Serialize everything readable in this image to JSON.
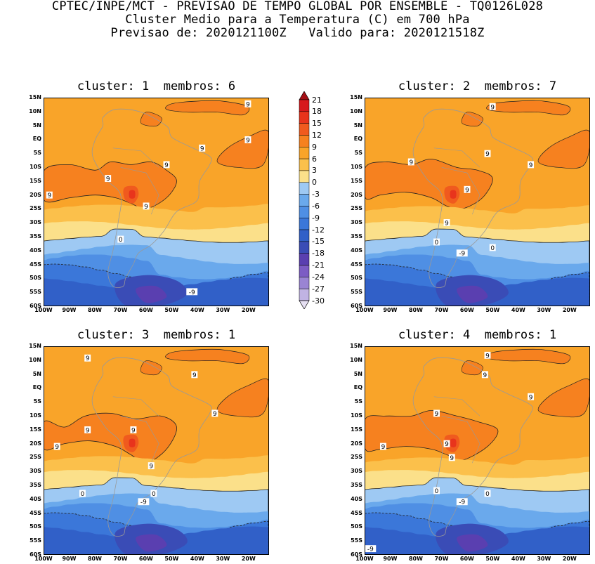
{
  "title": {
    "line1": "CPTEC/INPE/MCT - PREVISAO DE TEMPO GLOBAL POR ENSEMBLE - TQ0126L028",
    "line2": "Cluster Medio para a Temperatura (C) em 700 hPa",
    "line3": "Previsao de: 2020121100Z   Valido para: 2020121518Z"
  },
  "lat_labels": [
    "15N",
    "10N",
    "5N",
    "EQ",
    "5S",
    "10S",
    "15S",
    "20S",
    "25S",
    "30S",
    "35S",
    "40S",
    "45S",
    "50S",
    "55S",
    "60S"
  ],
  "lon_labels": [
    "100W",
    "90W",
    "80W",
    "70W",
    "60W",
    "50W",
    "40W",
    "30W",
    "20W"
  ],
  "colorbar": {
    "labels": [
      "21",
      "18",
      "15",
      "12",
      "9",
      "6",
      "3",
      "0",
      "-3",
      "-6",
      "-9",
      "-12",
      "-15",
      "-18",
      "-21",
      "-24",
      "-27",
      "-30"
    ],
    "colors": [
      "#a50f15",
      "#d7191c",
      "#e8341c",
      "#f05a1e",
      "#f6811f",
      "#f9a429",
      "#fbc04b",
      "#fbe08a",
      "#9ec9f3",
      "#6aa9ec",
      "#4f8fe4",
      "#3b77d9",
      "#3160c8",
      "#3a4cb6",
      "#5a3fb0",
      "#7c5cc4",
      "#9a84d3",
      "#c0b3e3",
      "#e6e0f3"
    ],
    "colors_note": ""
  },
  "panels": [
    {
      "title": "cluster: 1  membros: 6",
      "labels": [
        {
          "t": "9",
          "lon": -20,
          "lat": 13
        },
        {
          "t": "9",
          "lon": -20,
          "lat": 0
        },
        {
          "t": "9",
          "lon": -52,
          "lat": -9
        },
        {
          "t": "9",
          "lon": -38,
          "lat": -3
        },
        {
          "t": "9",
          "lon": -75,
          "lat": -14
        },
        {
          "t": "9",
          "lon": -98,
          "lat": -20
        },
        {
          "t": "9",
          "lon": -60,
          "lat": -24
        },
        {
          "t": "0",
          "lon": -70,
          "lat": -36
        },
        {
          "t": "-9",
          "lon": -42,
          "lat": -55
        }
      ]
    },
    {
      "title": "cluster: 2  membros: 7",
      "labels": [
        {
          "t": "9",
          "lon": -50,
          "lat": 12
        },
        {
          "t": "9",
          "lon": -52,
          "lat": -5
        },
        {
          "t": "9",
          "lon": -35,
          "lat": -9
        },
        {
          "t": "9",
          "lon": -82,
          "lat": -8
        },
        {
          "t": "9",
          "lon": -60,
          "lat": -18
        },
        {
          "t": "9",
          "lon": -68,
          "lat": -30
        },
        {
          "t": "0",
          "lon": -72,
          "lat": -37
        },
        {
          "t": "0",
          "lon": -50,
          "lat": -39
        },
        {
          "t": "-9",
          "lon": -62,
          "lat": -41
        }
      ]
    },
    {
      "title": "cluster: 3  membros: 1",
      "labels": [
        {
          "t": "9",
          "lon": -83,
          "lat": 11
        },
        {
          "t": "9",
          "lon": -41,
          "lat": 5
        },
        {
          "t": "9",
          "lon": -33,
          "lat": -9
        },
        {
          "t": "9",
          "lon": -83,
          "lat": -15
        },
        {
          "t": "9",
          "lon": -65,
          "lat": -15
        },
        {
          "t": "9",
          "lon": -95,
          "lat": -21
        },
        {
          "t": "9",
          "lon": -58,
          "lat": -28
        },
        {
          "t": "0",
          "lon": -85,
          "lat": -38
        },
        {
          "t": "0",
          "lon": -57,
          "lat": -38
        },
        {
          "t": "-9",
          "lon": -61,
          "lat": -41
        }
      ]
    },
    {
      "title": "cluster: 4  membros: 1",
      "labels": [
        {
          "t": "9",
          "lon": -52,
          "lat": 12
        },
        {
          "t": "9",
          "lon": -53,
          "lat": 5
        },
        {
          "t": "9",
          "lon": -35,
          "lat": -3
        },
        {
          "t": "9",
          "lon": -72,
          "lat": -9
        },
        {
          "t": "9",
          "lon": -93,
          "lat": -21
        },
        {
          "t": "9",
          "lon": -68,
          "lat": -20
        },
        {
          "t": "9",
          "lon": -66,
          "lat": -25
        },
        {
          "t": "0",
          "lon": -72,
          "lat": -37
        },
        {
          "t": "0",
          "lon": -52,
          "lat": -38
        },
        {
          "t": "-9",
          "lon": -62,
          "lat": -41
        },
        {
          "t": "-9",
          "lon": -98,
          "lat": -58
        }
      ]
    }
  ]
}
